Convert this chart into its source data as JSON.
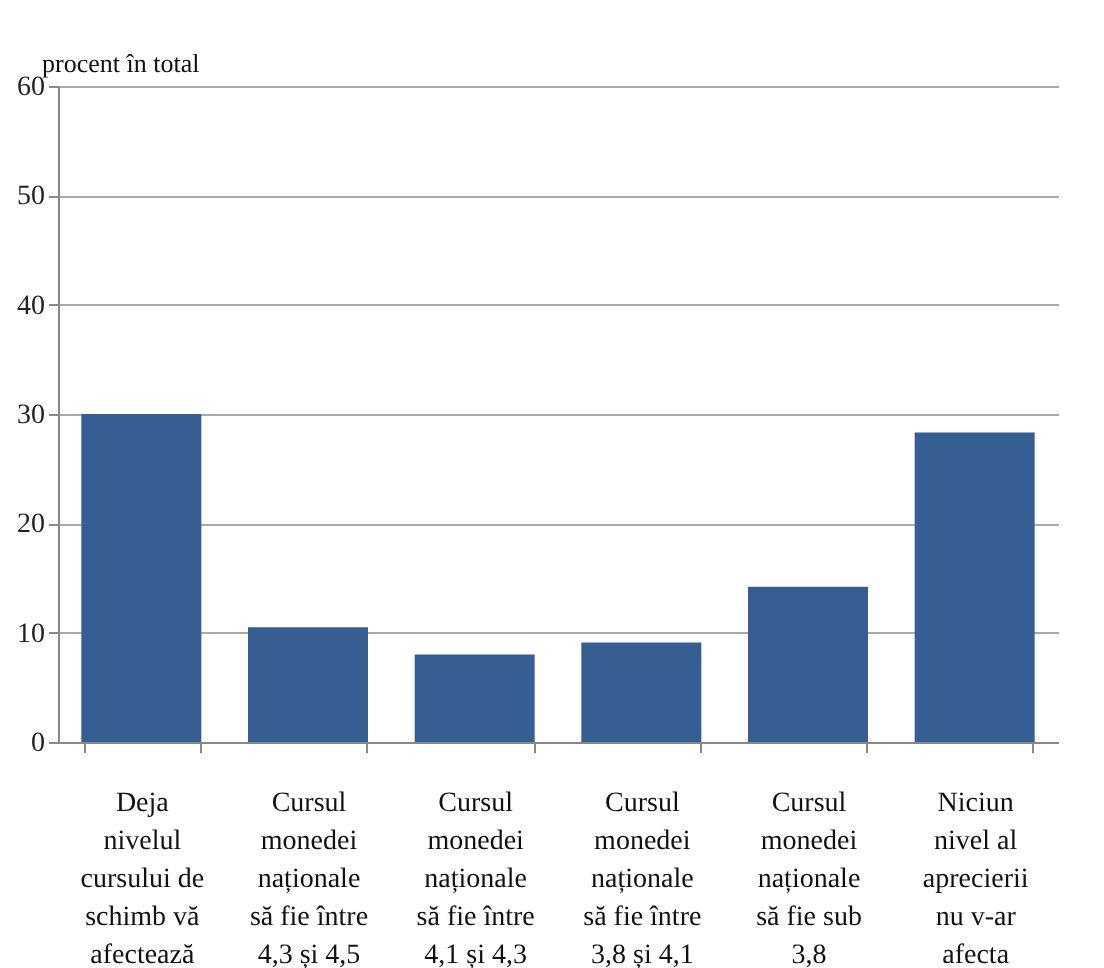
{
  "chart_data": {
    "type": "bar",
    "ylabel": "procent în total",
    "categories": [
      "Deja\nnivelul\ncursului de\nschimb vă\nafectează",
      "Cursul\nmonedei\nnaționale\nsă fie între\n4,3 și 4,5",
      "Cursul\nmonedei\nnaționale\nsă fie între\n4,1 și  4,3",
      "Cursul\nmonedei\nnaționale\nsă fie între\n3,8 și 4,1",
      "Cursul\nmonedei\nnaționale\nsă fie sub\n3,8",
      "Niciun\nnivel al\naprecierii\nnu v-ar\nafecta"
    ],
    "values": [
      30.0,
      10.5,
      8.0,
      9.1,
      14.2,
      28.3
    ],
    "color": "#375e93",
    "ylim": [
      0,
      60
    ],
    "yticks": [
      0,
      10,
      20,
      30,
      40,
      50,
      60
    ],
    "grid": "y"
  }
}
